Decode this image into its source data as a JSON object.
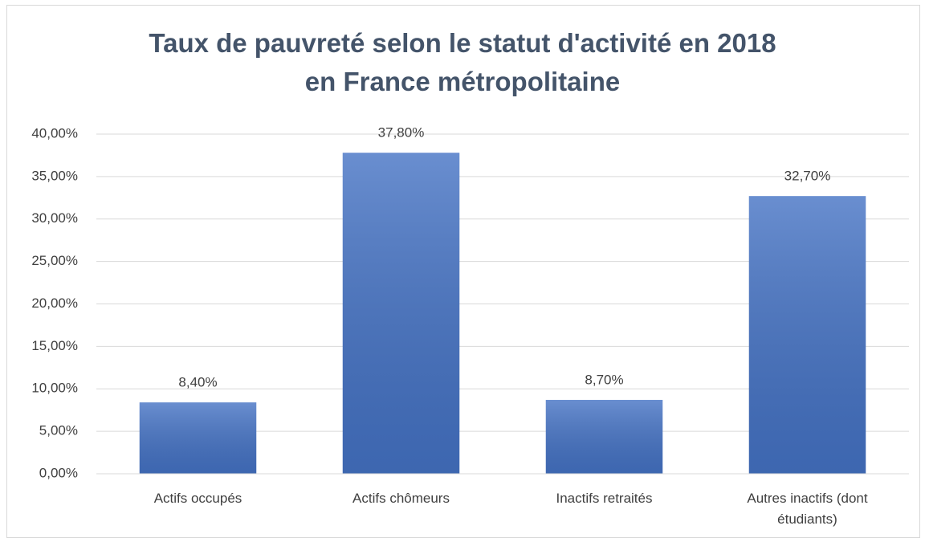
{
  "chart_data": {
    "type": "bar",
    "title": "Taux de pauvreté selon le statut d'activité en 2018 en France métropolitaine",
    "categories": [
      "Actifs occupés",
      "Actifs chômeurs",
      "Inactifs retraités",
      "Autres inactifs (dont étudiants)"
    ],
    "values": [
      8.4,
      37.8,
      8.7,
      32.7
    ],
    "value_labels": [
      "8,40%",
      "37,80%",
      "8,70%",
      "32,70%"
    ],
    "color": "#4472c4",
    "ylim": [
      0,
      40
    ],
    "yticks": [
      {
        "value": 0,
        "label": "0,00%"
      },
      {
        "value": 5,
        "label": "5,00%"
      },
      {
        "value": 10,
        "label": "10,00%"
      },
      {
        "value": 15,
        "label": "15,00%"
      },
      {
        "value": 20,
        "label": "20,00%"
      },
      {
        "value": 25,
        "label": "25,00%"
      },
      {
        "value": 30,
        "label": "30,00%"
      },
      {
        "value": 35,
        "label": "35,00%"
      },
      {
        "value": 40,
        "label": "40,00%"
      }
    ],
    "grid": true
  }
}
